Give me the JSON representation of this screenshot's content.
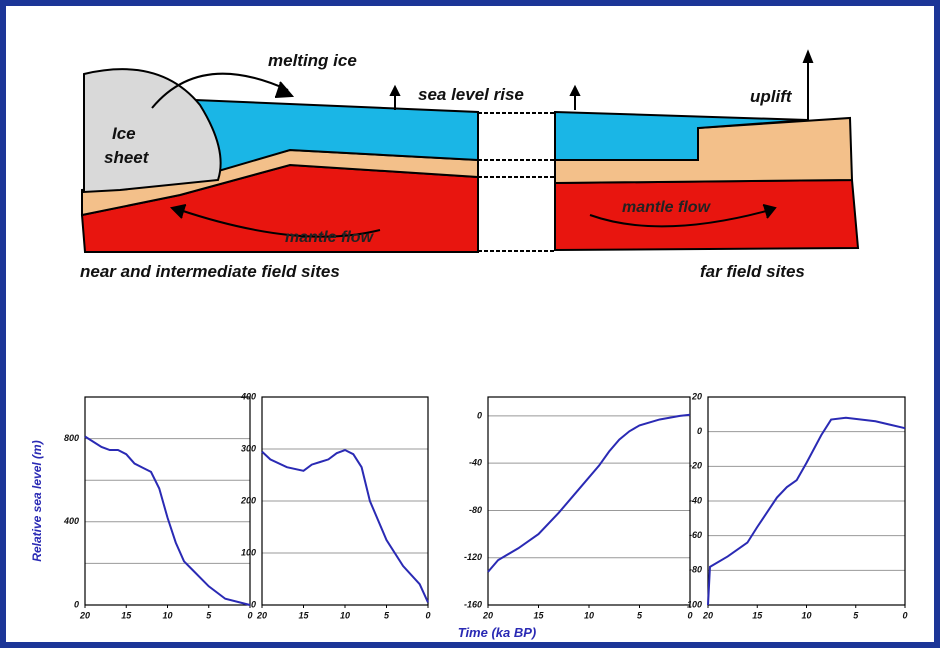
{
  "diagram": {
    "melting_ice": "melting ice",
    "sea_level_rise": "sea level rise",
    "uplift": "uplift",
    "ice_sheet": [
      "Ice",
      "sheet"
    ],
    "mantle_flow_left": "mantle flow",
    "mantle_flow_right": "mantle flow",
    "near_field": "near and intermediate field sites",
    "far_field": "far field sites"
  },
  "figure": {
    "xlabel": "Time (ka BP)"
  },
  "chart_data": [
    {
      "type": "line",
      "ylabel": "Relative sea level  (m)",
      "xlim": [
        20,
        0
      ],
      "xticks": [
        20,
        15,
        10,
        5,
        0
      ],
      "ylim": [
        0,
        1000
      ],
      "yticks": [
        0,
        400,
        800
      ],
      "minor_yticks": [
        200,
        600
      ],
      "grid": true,
      "series": [
        {
          "color": "#2a2ab4",
          "x": [
            20,
            18,
            17,
            16,
            15,
            14,
            13,
            12,
            11,
            10,
            9,
            8,
            7,
            5,
            3,
            0
          ],
          "values": [
            810,
            760,
            745,
            745,
            725,
            680,
            660,
            640,
            560,
            420,
            300,
            210,
            170,
            90,
            30,
            0
          ]
        }
      ]
    },
    {
      "type": "line",
      "xlim": [
        20,
        0
      ],
      "xticks": [
        20,
        15,
        10,
        5,
        0
      ],
      "ylim": [
        0,
        400
      ],
      "yticks": [
        0,
        100,
        200,
        300,
        400
      ],
      "grid": true,
      "series": [
        {
          "color": "#2a2ab4",
          "x": [
            20,
            19,
            17,
            15,
            14,
            13,
            12,
            11,
            10,
            9,
            8,
            7,
            5,
            3,
            1,
            0
          ],
          "values": [
            295,
            280,
            265,
            258,
            270,
            275,
            280,
            292,
            298,
            290,
            265,
            200,
            125,
            75,
            40,
            5
          ]
        }
      ]
    },
    {
      "type": "line",
      "xlim": [
        20,
        0
      ],
      "xticks": [
        20,
        15,
        10,
        5,
        0
      ],
      "ylim": [
        -160,
        16
      ],
      "yticks": [
        -160,
        -120,
        -80,
        -40,
        0
      ],
      "grid": true,
      "series": [
        {
          "color": "#2a2ab4",
          "x": [
            20,
            19,
            17,
            16,
            15,
            13,
            11,
            9,
            8,
            7,
            6,
            5,
            3,
            1,
            0
          ],
          "values": [
            -132,
            -122,
            -112,
            -106,
            -100,
            -82,
            -62,
            -42,
            -30,
            -20,
            -13,
            -8,
            -3,
            0,
            1
          ]
        }
      ]
    },
    {
      "type": "line",
      "xlim": [
        20,
        0
      ],
      "xticks": [
        20,
        15,
        10,
        5,
        0
      ],
      "ylim": [
        -100,
        20
      ],
      "yticks": [
        -100,
        -80,
        -60,
        -40,
        -20,
        0,
        20
      ],
      "grid": true,
      "series": [
        {
          "color": "#2a2ab4",
          "x": [
            20,
            19.8,
            18,
            16,
            15,
            13,
            12,
            11,
            10,
            8.5,
            7.5,
            6,
            3,
            0
          ],
          "values": [
            -100,
            -78,
            -72,
            -64,
            -55,
            -38,
            -32,
            -28,
            -18,
            -2,
            7,
            8,
            6,
            2
          ]
        }
      ]
    }
  ]
}
